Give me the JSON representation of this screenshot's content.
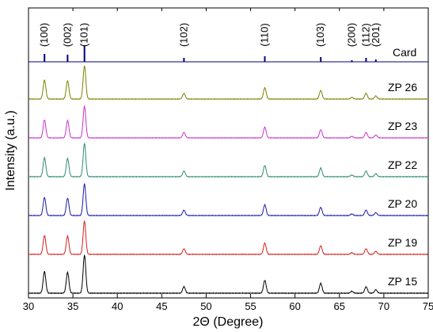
{
  "chart_data": {
    "type": "line",
    "title": "",
    "xlabel": "2Θ (Degree)",
    "ylabel": "Intensity (a.u.)",
    "xlim": [
      30,
      75
    ],
    "x_ticks": [
      "30",
      "35",
      "40",
      "45",
      "50",
      "55",
      "60",
      "65",
      "70",
      "75"
    ],
    "y_ticks_shown": false,
    "reference": {
      "name": "Card",
      "color": "#000080",
      "peaks": [
        {
          "x": 31.8,
          "hkl": "(100)",
          "height": 0.5
        },
        {
          "x": 34.4,
          "hkl": "(002)",
          "height": 0.45
        },
        {
          "x": 36.3,
          "hkl": "(101)",
          "height": 1.0
        },
        {
          "x": 47.5,
          "hkl": "(102)",
          "height": 0.25
        },
        {
          "x": 56.6,
          "hkl": "(110)",
          "height": 0.35
        },
        {
          "x": 62.9,
          "hkl": "(103)",
          "height": 0.3
        },
        {
          "x": 66.4,
          "hkl": "(200)",
          "height": 0.1
        },
        {
          "x": 68.0,
          "hkl": "(112)",
          "height": 0.25
        },
        {
          "x": 69.1,
          "hkl": "(201)",
          "height": 0.15
        }
      ]
    },
    "peak_profile": [
      {
        "x": 31.8,
        "rel": 0.57
      },
      {
        "x": 34.4,
        "rel": 0.55
      },
      {
        "x": 36.3,
        "rel": 1.0
      },
      {
        "x": 47.5,
        "rel": 0.17
      },
      {
        "x": 56.6,
        "rel": 0.34
      },
      {
        "x": 62.9,
        "rel": 0.26
      },
      {
        "x": 66.4,
        "rel": 0.05
      },
      {
        "x": 68.0,
        "rel": 0.17
      },
      {
        "x": 69.1,
        "rel": 0.09
      }
    ],
    "series": [
      {
        "name": "ZP 26",
        "color": "#808000"
      },
      {
        "name": "ZP 23",
        "color": "#cc33cc"
      },
      {
        "name": "ZP 22",
        "color": "#2e8b74"
      },
      {
        "name": "ZP 20",
        "color": "#1a1aaa"
      },
      {
        "name": "ZP 19",
        "color": "#d62020"
      },
      {
        "name": "ZP 15",
        "color": "#000000"
      }
    ]
  }
}
